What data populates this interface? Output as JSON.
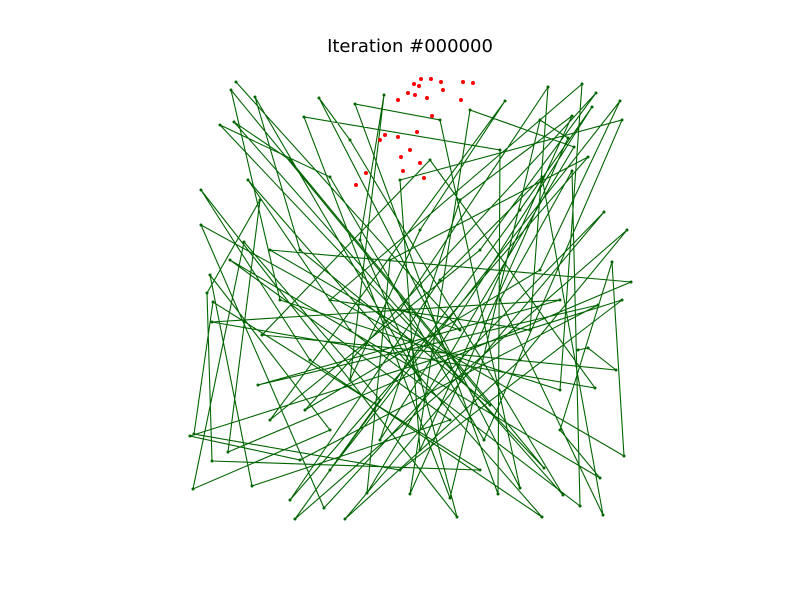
{
  "chart_data": {
    "type": "scatter",
    "title": "Iteration #000000",
    "xlim": [
      180,
      640
    ],
    "ylim": [
      75,
      530
    ],
    "series": [
      {
        "color": "#006400",
        "line": true,
        "x": [
          236,
          460,
          400,
          548,
          530,
          330,
          582,
          560,
          280,
          231,
          490,
          300,
          255,
          420,
          360,
          384,
          350,
          420,
          505,
          270,
          480,
          596,
          305,
          540,
          620,
          330,
          520,
          592,
          380,
          460,
          572,
          420,
          400,
          622,
          484,
          330,
          220,
          544,
          290,
          234,
          563,
          350,
          319,
          520,
          440,
          355,
          498,
          500,
          304,
          450,
          540,
          568,
          410,
          470,
          574,
          367,
          390,
          588,
          290,
          440,
          542,
          603,
          500,
          572,
          580,
          350,
          248,
          542,
          310,
          201,
          457,
          410,
          201,
          324,
          460,
          604,
          345,
          520,
          627,
          295,
          380,
          244,
          193,
          330,
          210,
          252,
          450,
          230,
          600,
          560,
          612,
          624,
          270,
          631,
          228,
          260,
          207,
          212,
          480,
          213,
          194,
          400,
          622,
          190,
          300,
          598,
          258,
          560,
          212,
          595,
          430,
          262,
          616,
          588,
          578
        ],
        "values": [
          518,
          270,
          290,
          513,
          270,
          300,
          516,
          210,
          300,
          510,
          195,
          350,
          503,
          220,
          360,
          505,
          220,
          370,
          499,
          180,
          350,
          507,
          190,
          330,
          499,
          130,
          390,
          493,
          160,
          400,
          484,
          150,
          420,
          480,
          160,
          423,
          475,
          132,
          440,
          478,
          105,
          460,
          502,
          112,
          480,
          496,
          106,
          450,
          483,
          102,
          480,
          462,
          106,
          490,
          453,
          107,
          340,
          443,
          100,
          320,
          423,
          85,
          300,
          429,
          94,
          270,
          420,
          83,
          240,
          410,
          83,
          260,
          375,
          92,
          240,
          388,
          81,
          240,
          370,
          81,
          200,
          358,
          111,
          170,
          325,
          114,
          180,
          340,
          122,
          170,
          338,
          144,
          350,
          318,
          148,
          400,
          307,
          139,
          130,
          298,
          166,
          130,
          300,
          164,
          140,
          295,
          215,
          300,
          278,
          212,
          440,
          265,
          230,
          252,
          250
        ]
      },
      {
        "color": "#ff0000",
        "line": false,
        "x": [
          421,
          431,
          414,
          419,
          441,
          463,
          473,
          443,
          408,
          415,
          398,
          427,
          461,
          432,
          417,
          398,
          385,
          401,
          420,
          403,
          424,
          366,
          356,
          380,
          410
        ],
        "values": [
          521,
          521,
          516,
          514,
          518,
          518,
          517,
          510,
          507,
          505,
          500,
          502,
          500,
          484,
          468,
          463,
          465,
          443,
          437,
          429,
          422,
          427,
          415,
          460,
          450
        ]
      }
    ]
  }
}
